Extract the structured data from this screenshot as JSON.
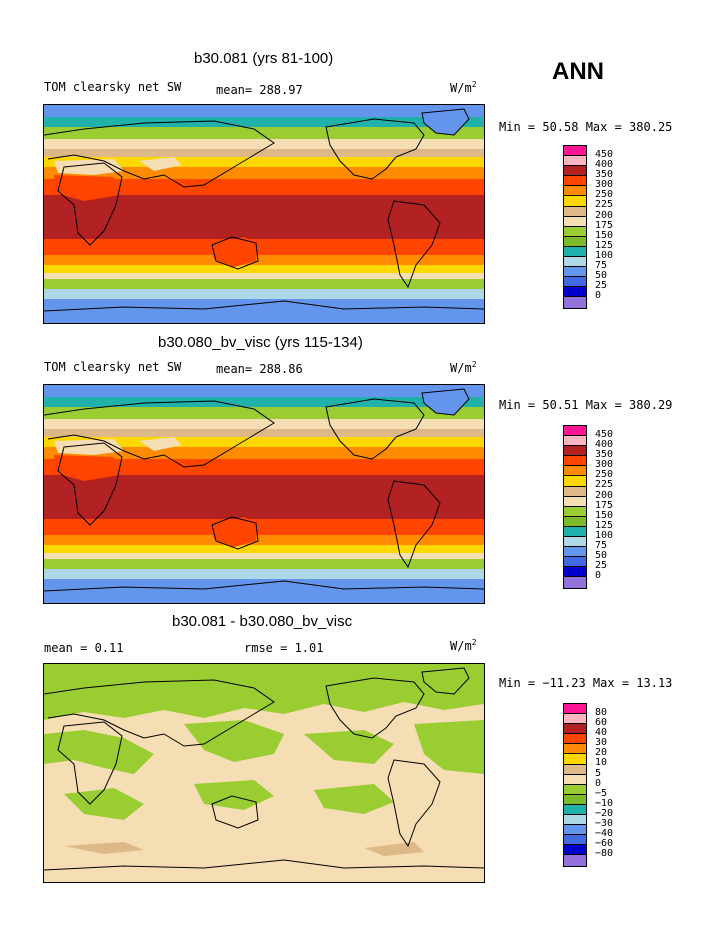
{
  "season": "ANN",
  "unit_text": "W/m",
  "unit_sup": "2",
  "panels": [
    {
      "title": "b30.081 (yrs 81-100)",
      "variable": "TOM clearsky net SW",
      "stat": "mean= 288.97",
      "minmax": "Min =  50.58 Max = 380.25"
    },
    {
      "title": "b30.080_bv_visc (yrs 115-134)",
      "variable": "TOM clearsky net SW",
      "stat": "mean= 288.86",
      "minmax": "Min =  50.51 Max = 380.29"
    },
    {
      "title": "b30.081 - b30.080_bv_visc",
      "variable": "mean =   0.11",
      "stat": "rmse =   1.01",
      "minmax": "Min = −11.23 Max =  13.13"
    }
  ],
  "colorbar_colors": [
    "#ff1493",
    "#ffb6c1",
    "#b22222",
    "#ff4500",
    "#ff8c00",
    "#ffd700",
    "#deb887",
    "#f5deb3",
    "#9acd32",
    "#7cbb2c",
    "#20b2aa",
    "#add8e6",
    "#6495ed",
    "#4169e1",
    "#0000cd",
    "#9370db"
  ],
  "colorbar_labels_abs": [
    "450",
    "400",
    "350",
    "300",
    "250",
    "225",
    "200",
    "175",
    "150",
    "125",
    "100",
    "75",
    "50",
    "25",
    "0"
  ],
  "colorbar_labels_diff": [
    "80",
    "60",
    "40",
    "30",
    "20",
    "10",
    "5",
    "0",
    "−5",
    "−10",
    "−20",
    "−30",
    "−40",
    "−60",
    "−80"
  ],
  "map_colors": {
    "polar_blue": "#6495ed",
    "light_blue": "#add8e6",
    "teal": "#20b2aa",
    "green": "#9acd32",
    "pale": "#f5deb3",
    "tan": "#deb887",
    "yellow": "#ffd700",
    "orange": "#ff8c00",
    "redorange": "#ff4500",
    "darkred": "#b22222",
    "diff_green": "#9acd32",
    "diff_pale": "#f5deb3",
    "diff_tan": "#deb887"
  }
}
